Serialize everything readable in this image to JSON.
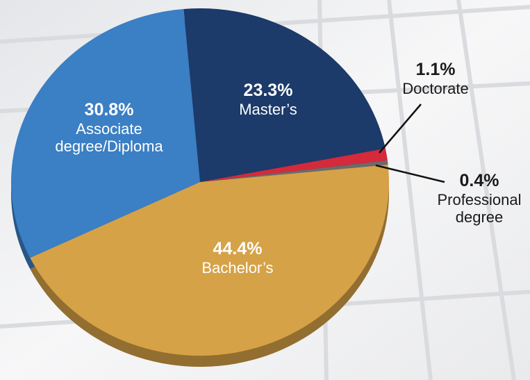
{
  "chart_data": {
    "type": "pie",
    "categories": [
      "Master’s",
      "Doctorate",
      "Professional degree",
      "Bachelor’s",
      "Associate degree/Diploma"
    ],
    "values": [
      23.3,
      1.1,
      0.4,
      44.4,
      30.8
    ],
    "value_labels": [
      "23.3%",
      "1.1%",
      "0.4%",
      "44.4%",
      "30.8%"
    ],
    "colors": [
      "#1c3a6a",
      "#d42a3c",
      "#6b6b6b",
      "#d6a247",
      "#3b7fc4"
    ]
  }
}
